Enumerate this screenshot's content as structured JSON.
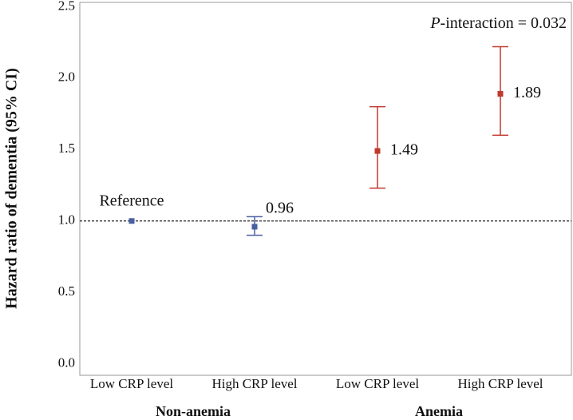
{
  "chart_data": {
    "type": "errorbar",
    "ylabel": "Hazard ratio of dementia (95% CI)",
    "annotation": [
      "P",
      "-interaction = 0.032"
    ],
    "categories": [
      "Low CRP level",
      "High CRP level",
      "Low CRP level",
      "High CRP level"
    ],
    "groups": [
      {
        "name": "Non-anemia",
        "span": [
          0,
          1
        ]
      },
      {
        "name": "Anemia",
        "span": [
          2,
          3
        ]
      }
    ],
    "values": [
      1.0,
      0.96,
      1.49,
      1.89
    ],
    "lower": [
      1.0,
      0.9,
      1.23,
      1.6
    ],
    "upper": [
      1.0,
      1.03,
      1.8,
      2.22
    ],
    "value_labels": [
      "Reference",
      "0.96",
      "1.49",
      "1.89"
    ],
    "colors": [
      "#4a5fa0",
      "#4a5fa0",
      "#c0392b",
      "#c0392b"
    ],
    "reference_line": 1.0,
    "ylim": [
      -0.08,
      2.53
    ],
    "yticks": [
      {
        "value": 0,
        "label": "0.0"
      },
      {
        "value": 0.5,
        "label": "0.5"
      },
      {
        "value": 1,
        "label": "1.0"
      },
      {
        "value": 1.5,
        "label": "1.5"
      },
      {
        "value": 2,
        "label": "2.0"
      },
      {
        "value": 2.5,
        "label": "2.5"
      }
    ],
    "grid": false
  }
}
